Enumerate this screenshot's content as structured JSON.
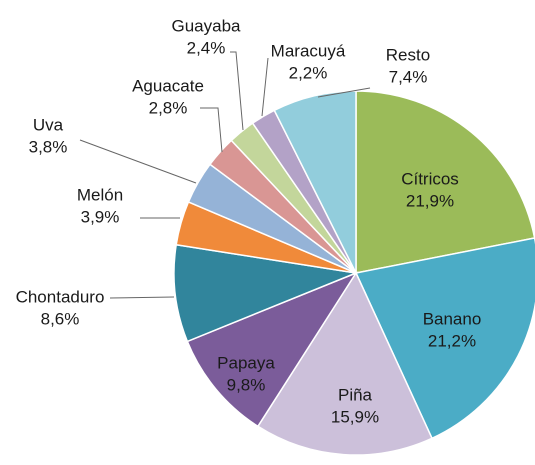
{
  "chart_data": {
    "type": "pie",
    "categories": [
      "Cítricos",
      "Banano",
      "Piña",
      "Papaya",
      "Chontaduro",
      "Melón",
      "Uva",
      "Aguacate",
      "Guayaba",
      "Maracuyá",
      "Resto"
    ],
    "values": [
      21.9,
      21.2,
      15.9,
      9.8,
      8.6,
      3.9,
      3.8,
      2.8,
      2.4,
      2.2,
      7.4
    ],
    "value_labels": [
      "21,9%",
      "21,2%",
      "15,9%",
      "9,8%",
      "8,6%",
      "3,9%",
      "3,8%",
      "2,8%",
      "2,4%",
      "2,2%",
      "7,4%"
    ],
    "colors": [
      "#9bbb59",
      "#4bacc6",
      "#ccc0da",
      "#7b5c9a",
      "#31859c",
      "#f08a3a",
      "#95b3d7",
      "#d99694",
      "#c3d69b",
      "#b3a2c7",
      "#92cddc"
    ]
  }
}
